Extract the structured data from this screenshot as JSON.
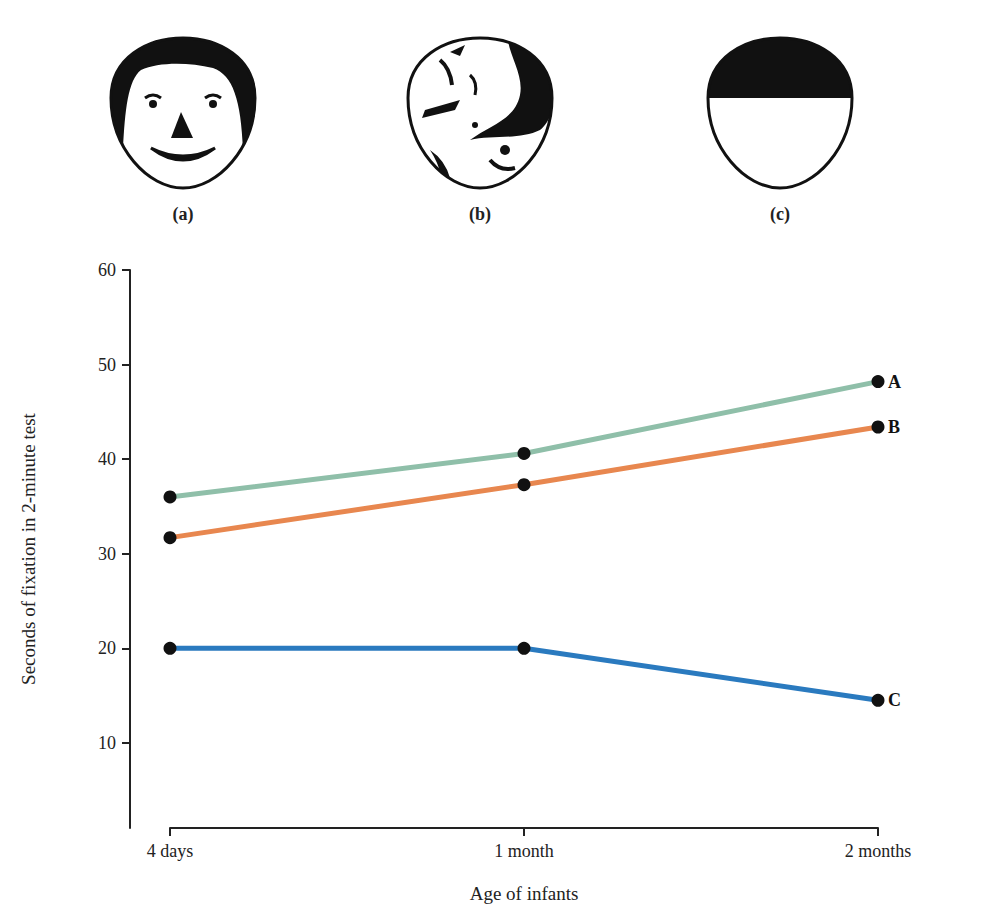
{
  "chart_data": {
    "type": "line",
    "categories": [
      "4 days",
      "1 month",
      "2 months"
    ],
    "series": [
      {
        "name": "A",
        "color": "#8fbfa9",
        "values": [
          36,
          40.6,
          48.2
        ]
      },
      {
        "name": "B",
        "color": "#e8874f",
        "values": [
          31.7,
          37.3,
          43.4
        ]
      },
      {
        "name": "C",
        "color": "#2a7abf",
        "values": [
          20,
          20,
          14.5
        ]
      }
    ],
    "xlabel": "Age of infants",
    "ylabel": "Seconds of fixation in 2-minute test",
    "ylim": [
      1,
      60
    ],
    "yticks": [
      10,
      20,
      30,
      40,
      50,
      60
    ],
    "grid": false,
    "marker": "circle",
    "annotations": [
      "(a)",
      "(b)",
      "(c)"
    ]
  }
}
